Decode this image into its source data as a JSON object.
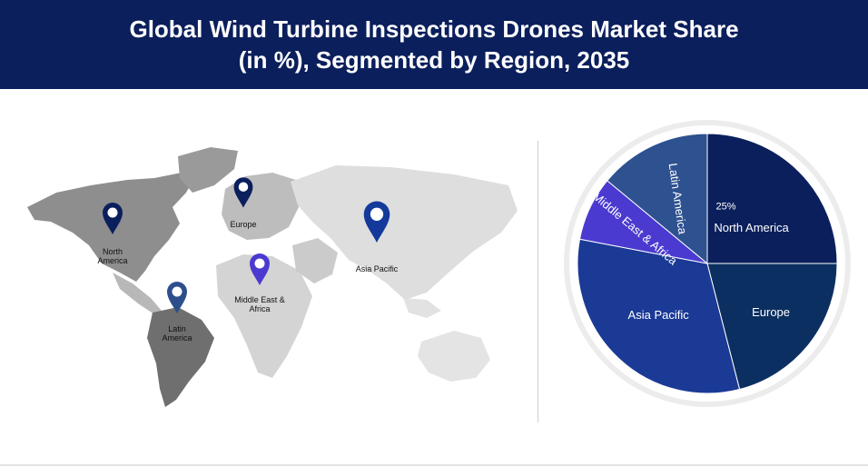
{
  "header": {
    "title_line1": "Global Wind Turbine Inspections Drones Market Share",
    "title_line2": "(in %), Segmented by Region, 2035"
  },
  "map": {
    "markers": [
      {
        "name": "north-america",
        "label_lines": [
          "North",
          "America"
        ],
        "color": "#0b1f5c"
      },
      {
        "name": "europe",
        "label_lines": [
          "Europe"
        ],
        "color": "#0b1f5c"
      },
      {
        "name": "asia-pacific",
        "label_lines": [
          "Asia Pacific"
        ],
        "color": "#13399a"
      },
      {
        "name": "middle-east-africa",
        "label_lines": [
          "Middle East &",
          "Africa"
        ],
        "color": "#4a3ad0"
      },
      {
        "name": "latin-america",
        "label_lines": [
          "Latin",
          "America"
        ],
        "color": "#2c4f8c"
      }
    ]
  },
  "chart_data": {
    "type": "pie",
    "title": "Global Wind Turbine Inspections Drones Market Share (in %), Segmented by Region, 2035",
    "slices": [
      {
        "label": "North America",
        "value": 25,
        "value_label": "25%",
        "color": "#0b1f5c"
      },
      {
        "label": "Europe",
        "value": 21,
        "value_label": "",
        "color": "#0c2f61"
      },
      {
        "label": "Asia Pacific",
        "value": 32,
        "value_label": "",
        "color": "#1b3a96"
      },
      {
        "label": "Middle East & Africa",
        "value": 8,
        "value_label": "",
        "color": "#4a3ad0"
      },
      {
        "label": "Latin America",
        "value": 14,
        "value_label": "",
        "color": "#2e5190"
      }
    ]
  }
}
